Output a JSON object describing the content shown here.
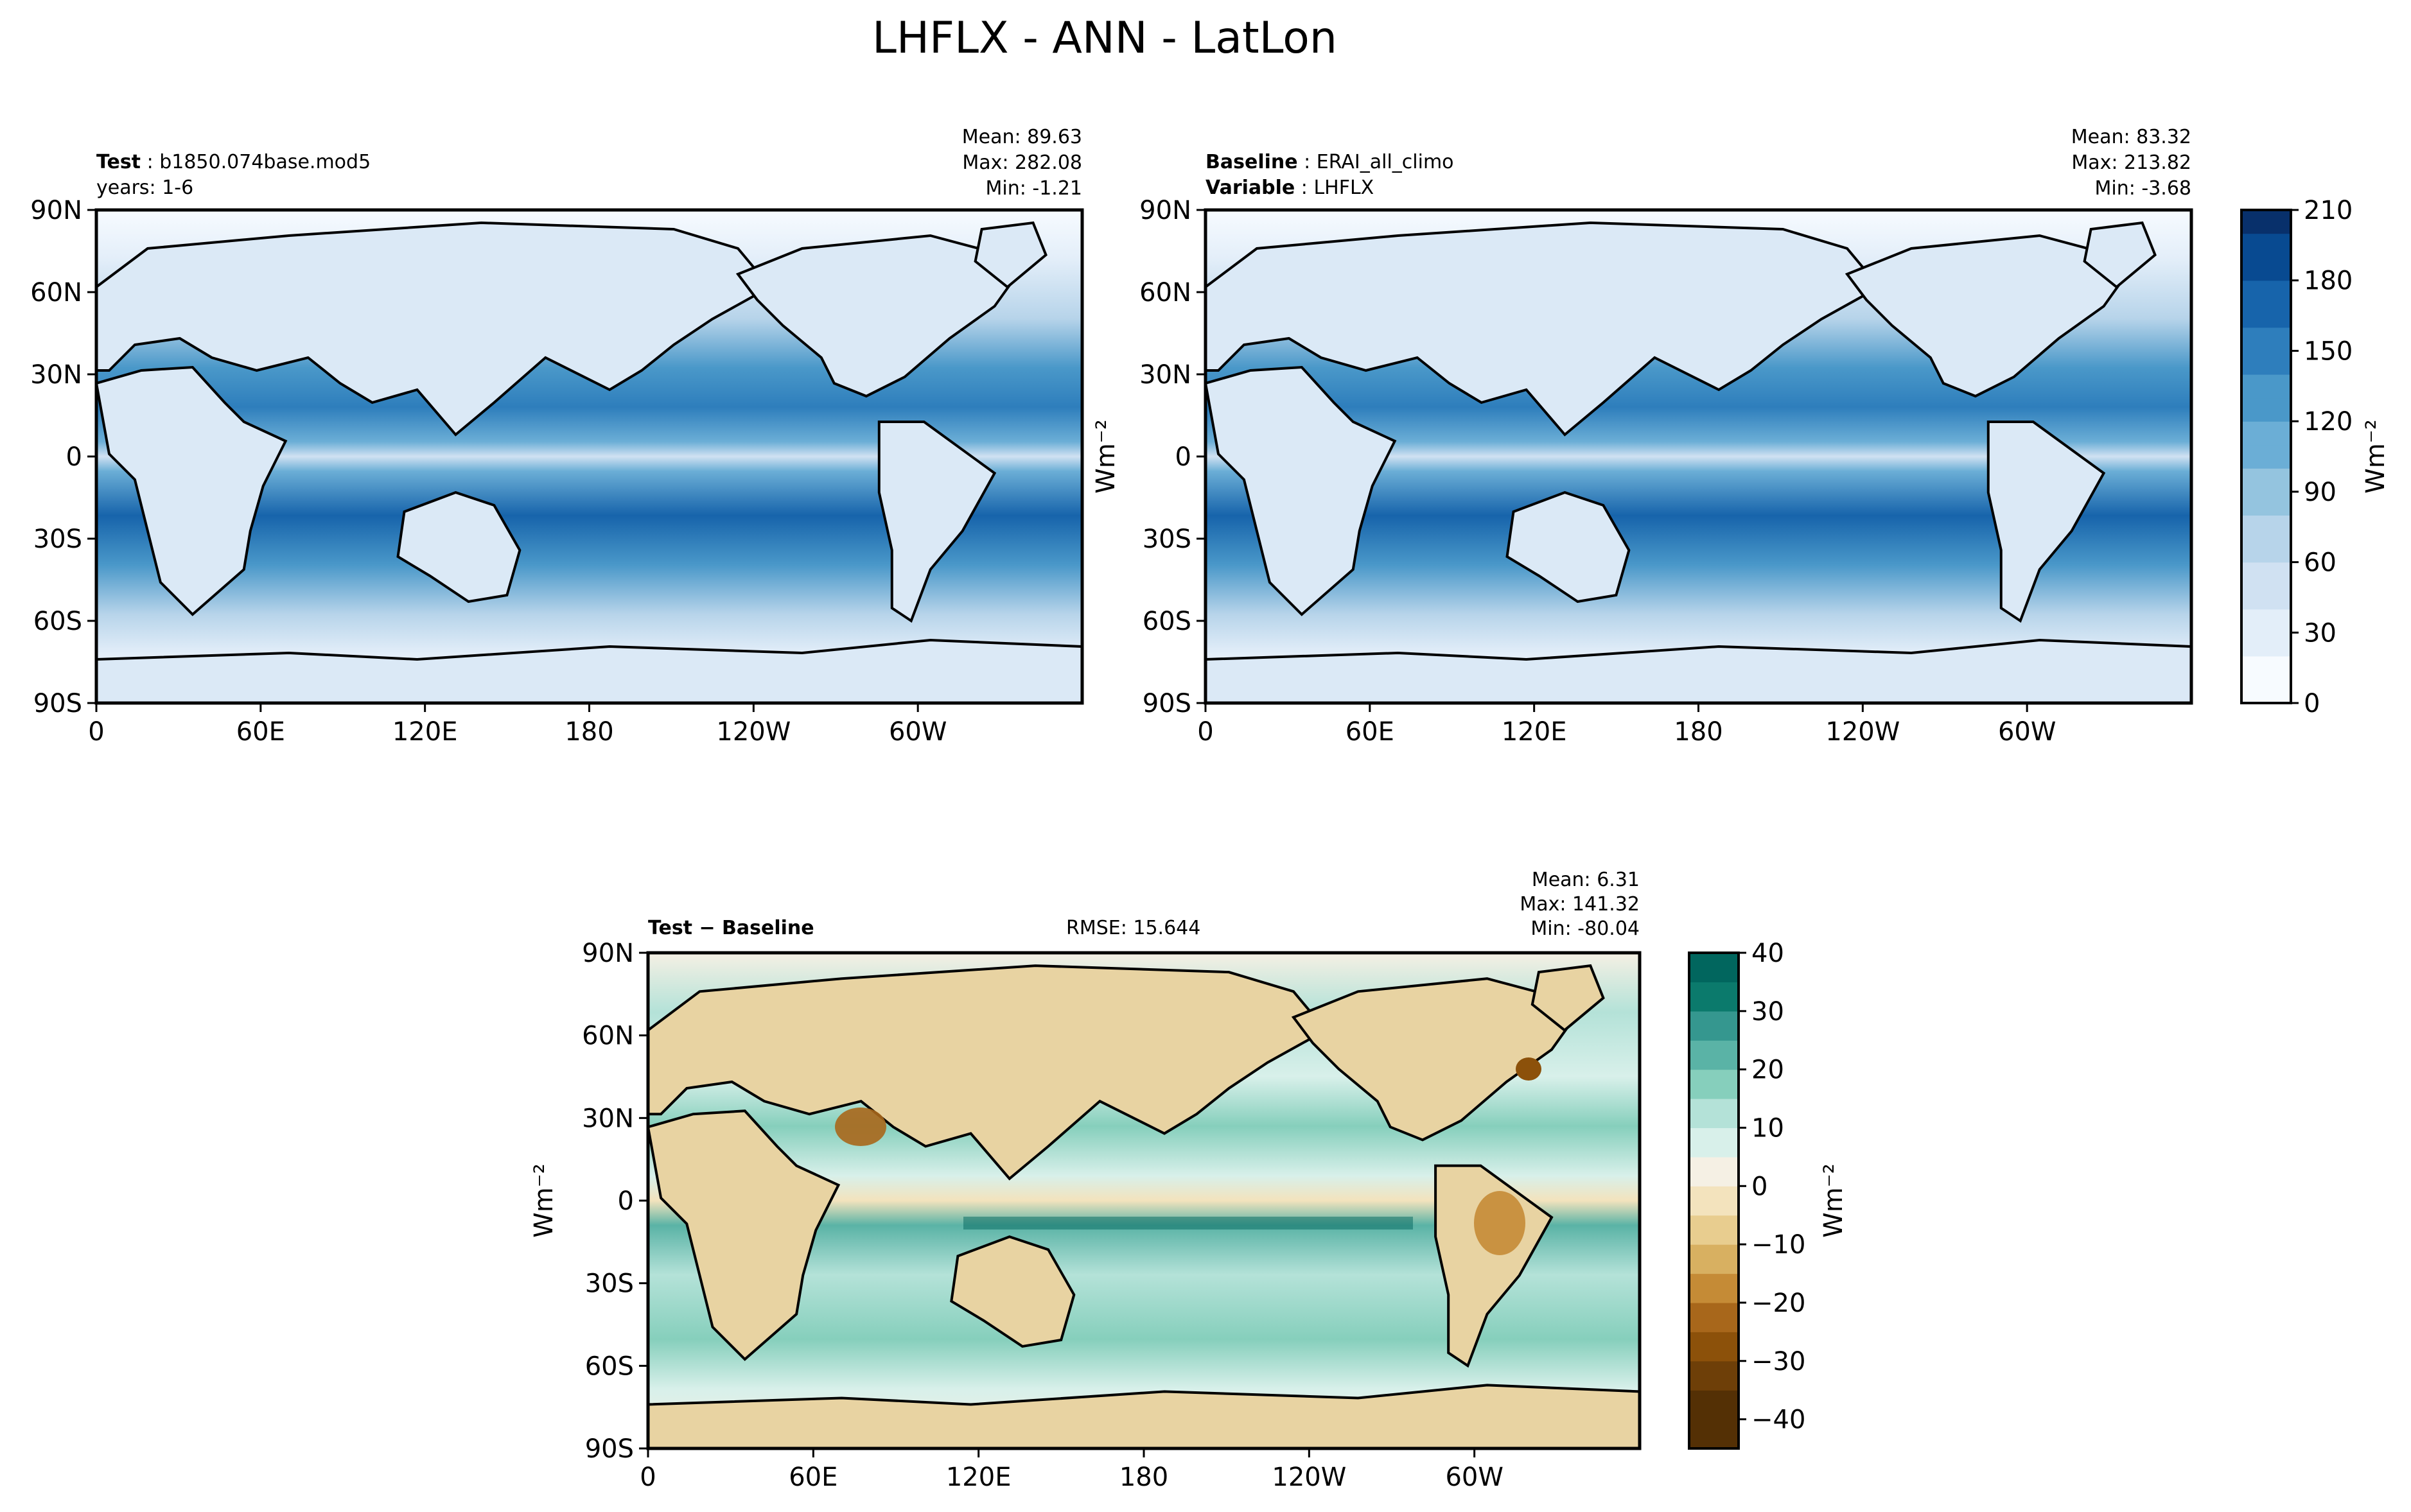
{
  "figure": {
    "title": "LHFLX - ANN - LatLon"
  },
  "colors": {
    "blues": [
      "#f7fbff",
      "#e3eef9",
      "#d0e1f2",
      "#b7d4ea",
      "#94c4df",
      "#6baed6",
      "#4a98c9",
      "#2e7ebc",
      "#1764ab",
      "#084a91",
      "#08306b"
    ],
    "diff_pos": [
      "#f5f0e4",
      "#d8f0ea",
      "#b4e2d8",
      "#86cfbc",
      "#5ab3a6",
      "#35978f",
      "#0b7a6c",
      "#01665e",
      "#004c41"
    ],
    "diff_neg": [
      "#f5f0e4",
      "#f3e3bd",
      "#e8cd8f",
      "#d8b061",
      "#c58b36",
      "#a8671b",
      "#8c510a",
      "#6e3f08",
      "#543005"
    ],
    "land_line": "#000000"
  },
  "panels": {
    "test": {
      "label_bold": "Test",
      "label_sep": " : ",
      "label_value": "b1850.074base.mod5",
      "sub_label": "years: 1-6",
      "stat_mean": "Mean: 89.63",
      "stat_max": "Max: 282.08",
      "stat_min": "Min: -1.21"
    },
    "baseline": {
      "label_bold": "Baseline",
      "label_sep": " : ",
      "label_value": "ERAI_all_climo",
      "sub_label_bold": "Variable",
      "sub_label_sep": " : ",
      "sub_label_value": "LHFLX",
      "stat_mean": "Mean: 83.32",
      "stat_max": "Max: 213.82",
      "stat_min": "Min: -3.68",
      "ylabel": "Wm⁻²"
    },
    "diff": {
      "label_bold": "Test − Baseline",
      "rmse": "RMSE: 15.644",
      "stat_mean": "Mean:  6.31",
      "stat_max": "Max: 141.32",
      "stat_min": "Min: -80.04",
      "ylabel": "Wm⁻²"
    }
  },
  "axes": {
    "xticks": [
      "0",
      "60E",
      "120E",
      "180",
      "120W",
      "60W"
    ],
    "yticks": [
      "90N",
      "60N",
      "30N",
      "0",
      "30S",
      "60S",
      "90S"
    ]
  },
  "colorbars": {
    "main": {
      "ticks": [
        "210",
        "180",
        "150",
        "120",
        "90",
        "60",
        "30",
        "0"
      ],
      "label": "Wm⁻²"
    },
    "diff": {
      "ticks": [
        "40",
        "30",
        "20",
        "10",
        "0",
        "−10",
        "−20",
        "−30",
        "−40"
      ],
      "label": "Wm⁻²"
    }
  },
  "chart_data": [
    {
      "type": "heatmap",
      "panel": "test",
      "x_range": [
        0,
        360
      ],
      "y_range": [
        -90,
        90
      ],
      "color_range": [
        0,
        210
      ],
      "mean": 89.63,
      "max": 282.08,
      "min": -1.21
    },
    {
      "type": "heatmap",
      "panel": "baseline",
      "x_range": [
        0,
        360
      ],
      "y_range": [
        -90,
        90
      ],
      "color_range": [
        0,
        210
      ],
      "mean": 83.32,
      "max": 213.82,
      "min": -3.68
    },
    {
      "type": "heatmap",
      "panel": "diff",
      "x_range": [
        0,
        360
      ],
      "y_range": [
        -90,
        90
      ],
      "color_range": [
        -45,
        40
      ],
      "rmse": 15.644,
      "mean": 6.31,
      "max": 141.32,
      "min": -80.04
    }
  ]
}
